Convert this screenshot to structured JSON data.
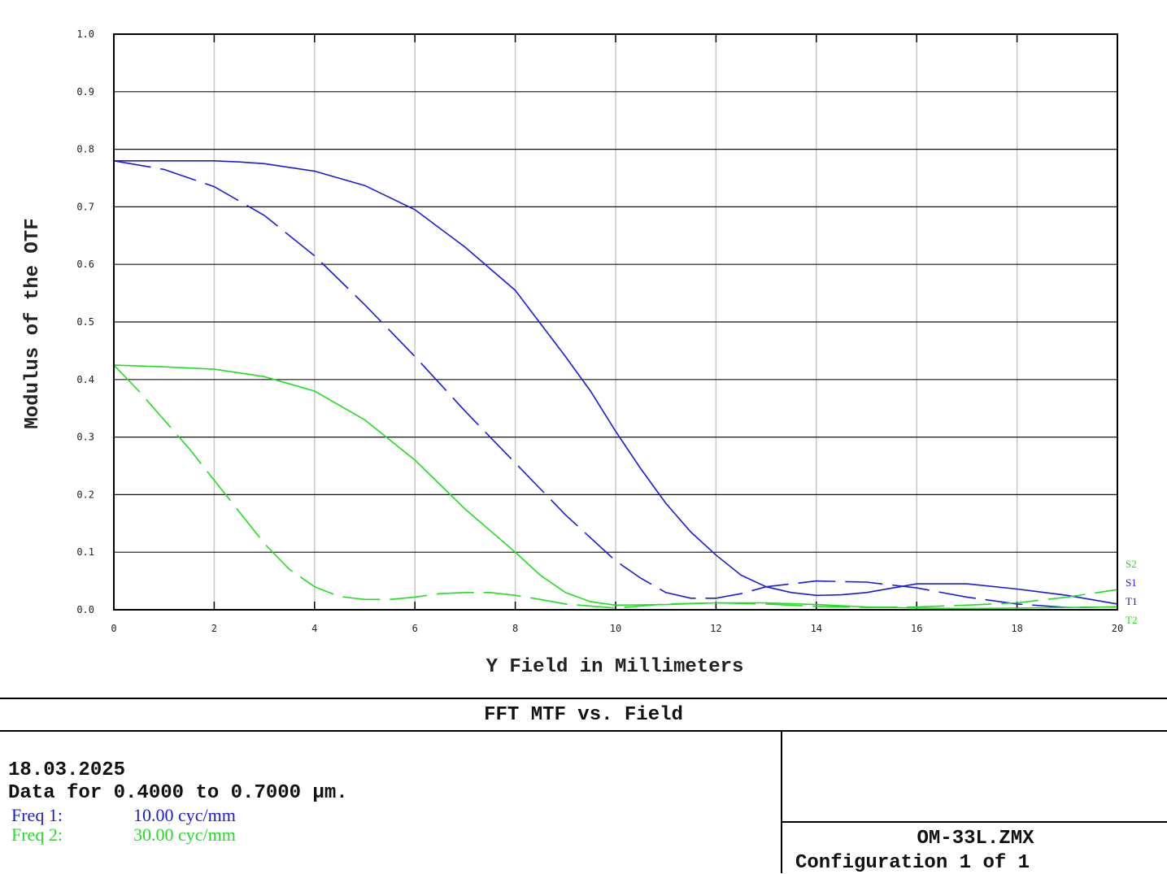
{
  "chart_data": {
    "type": "line",
    "title": "FFT MTF vs. Field",
    "xlabel": "Y Field in Millimeters",
    "ylabel": "Modulus of the OTF",
    "xlim": [
      0,
      20
    ],
    "ylim": [
      0,
      1.0
    ],
    "x_ticks": [
      "0",
      "2",
      "4",
      "6",
      "8",
      "10",
      "12",
      "14",
      "16",
      "18",
      "20"
    ],
    "y_ticks": [
      "0.0",
      "0.1",
      "0.2",
      "0.3",
      "0.4",
      "0.5",
      "0.6",
      "0.7",
      "0.8",
      "0.9",
      "1.0"
    ],
    "grid": true,
    "legend_position": "right",
    "series": [
      {
        "name": "S1",
        "color": "#1a1adf",
        "dashed": false,
        "x": [
          0,
          1,
          2,
          2.5,
          3,
          4,
          5,
          6,
          7,
          8,
          9,
          9.5,
          10,
          10.5,
          11,
          11.5,
          12,
          12.5,
          13,
          13.5,
          14,
          14.5,
          15,
          16,
          17,
          18,
          19,
          20
        ],
        "y": [
          0.78,
          0.78,
          0.78,
          0.778,
          0.775,
          0.762,
          0.737,
          0.695,
          0.63,
          0.555,
          0.44,
          0.38,
          0.31,
          0.245,
          0.185,
          0.135,
          0.095,
          0.06,
          0.04,
          0.03,
          0.025,
          0.026,
          0.03,
          0.045,
          0.045,
          0.036,
          0.025,
          0.01
        ]
      },
      {
        "name": "T1",
        "color": "#1a1adf",
        "dashed": true,
        "x": [
          0,
          1,
          2,
          3,
          4,
          5,
          6,
          7,
          8,
          9,
          10,
          10.5,
          11,
          11.5,
          12,
          12.5,
          13,
          14,
          15,
          16,
          17,
          18,
          19,
          20
        ],
        "y": [
          0.78,
          0.765,
          0.735,
          0.685,
          0.615,
          0.53,
          0.44,
          0.345,
          0.255,
          0.165,
          0.085,
          0.055,
          0.03,
          0.02,
          0.02,
          0.028,
          0.04,
          0.05,
          0.048,
          0.038,
          0.022,
          0.01,
          0.004,
          0.005
        ]
      },
      {
        "name": "S2",
        "color": "#22dd22",
        "dashed": false,
        "x": [
          0,
          1,
          2,
          3,
          4,
          5,
          6,
          7,
          8,
          8.5,
          9,
          9.5,
          10,
          11,
          12,
          13,
          14,
          15,
          16,
          17,
          18,
          19,
          20
        ],
        "y": [
          0.425,
          0.422,
          0.418,
          0.405,
          0.38,
          0.33,
          0.26,
          0.175,
          0.1,
          0.06,
          0.03,
          0.014,
          0.008,
          0.009,
          0.012,
          0.012,
          0.009,
          0.005,
          0.003,
          0.002,
          0.003,
          0.004,
          0.005
        ]
      },
      {
        "name": "T2",
        "color": "#22dd22",
        "dashed": true,
        "x": [
          0,
          0.5,
          1,
          1.5,
          2,
          2.5,
          3,
          3.5,
          4,
          4.5,
          5,
          5.5,
          6,
          6.5,
          7,
          7.5,
          8,
          8.5,
          9,
          10,
          11,
          12,
          13,
          14,
          15,
          16,
          17,
          18,
          19,
          20
        ],
        "y": [
          0.425,
          0.38,
          0.33,
          0.28,
          0.225,
          0.17,
          0.115,
          0.07,
          0.04,
          0.023,
          0.018,
          0.018,
          0.022,
          0.028,
          0.03,
          0.03,
          0.025,
          0.018,
          0.01,
          0.003,
          0.01,
          0.012,
          0.01,
          0.006,
          0.004,
          0.005,
          0.008,
          0.012,
          0.022,
          0.035
        ]
      }
    ]
  },
  "info": {
    "title": "FFT MTF vs. Field",
    "date": "18.03.2025",
    "data_range": "Data for 0.4000 to 0.7000 µm.",
    "freq1_label": "Freq 1:",
    "freq1_value": "10.00 cyc/mm",
    "freq2_label": "Freq 2:",
    "freq2_value": "30.00 cyc/mm",
    "file_name": "OM-33L.ZMX",
    "configuration": "Configuration 1 of 1",
    "freq1_color": "#1a1adf",
    "freq2_color": "#22dd22"
  }
}
